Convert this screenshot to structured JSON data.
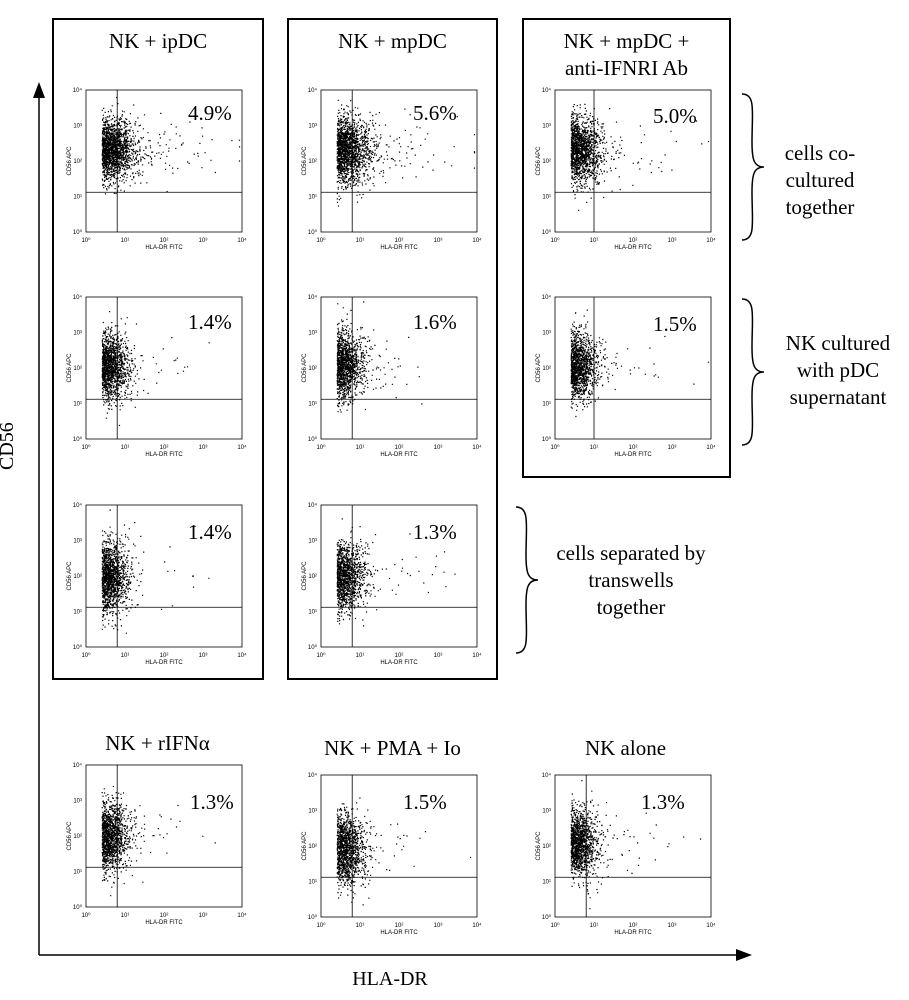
{
  "figure": {
    "x_axis_label": "HLA-DR",
    "y_axis_label": "CD56"
  },
  "plot_axes": {
    "x_label": "HLA-DR FITC",
    "y_label": "CD56 APC",
    "x_ticks": [
      "10⁰",
      "10¹",
      "10²",
      "10³",
      "10⁴"
    ],
    "y_ticks": [
      "10⁰",
      "10¹",
      "10²",
      "10³",
      "10⁴"
    ]
  },
  "columns": [
    {
      "title": "NK + ipDC"
    },
    {
      "title": "NK + mpDC"
    },
    {
      "title_line1": "NK + mpDC +",
      "title_line2": "anti-IFNRI Ab"
    }
  ],
  "row_brackets": [
    {
      "lines": [
        "cells co-",
        "cultured",
        "together"
      ]
    },
    {
      "lines": [
        "NK cultured",
        "with pDC",
        "supernatant"
      ]
    },
    {
      "lines": [
        "cells separated by",
        "transwells",
        "together"
      ]
    }
  ],
  "panels": [
    {
      "id": "r1c1",
      "pct": "4.9%"
    },
    {
      "id": "r1c2",
      "pct": "5.6%"
    },
    {
      "id": "r1c3",
      "pct": "5.0%"
    },
    {
      "id": "r2c1",
      "pct": "1.4%"
    },
    {
      "id": "r2c2",
      "pct": "1.6%"
    },
    {
      "id": "r2c3",
      "pct": "1.5%"
    },
    {
      "id": "r3c1",
      "pct": "1.4%"
    },
    {
      "id": "r3c2",
      "pct": "1.3%"
    },
    {
      "id": "b1",
      "title": "NK + rIFNα",
      "pct": "1.3%"
    },
    {
      "id": "b2",
      "title": "NK + PMA + Io",
      "pct": "1.5%"
    },
    {
      "id": "b3",
      "title": "NK alone",
      "pct": "1.3%"
    }
  ]
}
